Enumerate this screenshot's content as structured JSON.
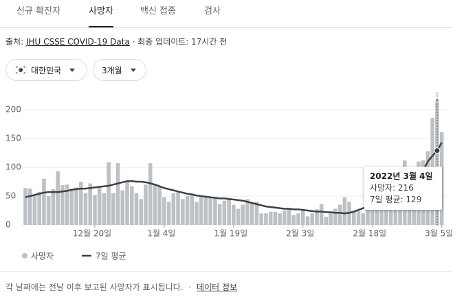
{
  "tabs": [
    "신규 확진자",
    "사망자",
    "백신 접종",
    "검사"
  ],
  "active_tab": 1,
  "source": {
    "label": "출처:",
    "link": "JHU CSSE COVID-19 Data",
    "updated": "· 최종 업데이트: 17시간 전"
  },
  "filters": [
    "대한민국",
    "3개월"
  ],
  "chart_data": {
    "type": "bar",
    "categories": [
      null,
      null,
      null,
      null,
      null,
      null,
      null,
      null,
      null,
      null,
      null,
      null,
      null,
      null,
      null,
      "12월 20일",
      null,
      null,
      null,
      null,
      null,
      null,
      null,
      null,
      null,
      null,
      null,
      null,
      null,
      null,
      "1월 4일",
      null,
      null,
      null,
      null,
      null,
      null,
      null,
      null,
      null,
      null,
      null,
      null,
      null,
      null,
      "1월 19일",
      null,
      null,
      null,
      null,
      null,
      null,
      null,
      null,
      null,
      null,
      null,
      null,
      null,
      null,
      "2월 3일",
      null,
      null,
      null,
      null,
      null,
      null,
      null,
      null,
      null,
      null,
      null,
      null,
      null,
      null,
      "2월 18일",
      null,
      null,
      null,
      null,
      null,
      null,
      null,
      null,
      null,
      null,
      null,
      null,
      null,
      null,
      "3월 5일"
    ],
    "series": [
      {
        "name": "사망자",
        "type": "bar",
        "color": "#bdc1c6",
        "values": [
          64,
          63,
          52,
          57,
          80,
          50,
          62,
          93,
          69,
          70,
          60,
          65,
          75,
          55,
          72,
          52,
          68,
          55,
          109,
          55,
          107,
          60,
          75,
          67,
          55,
          45,
          70,
          107,
          70,
          67,
          48,
          40,
          55,
          58,
          45,
          50,
          52,
          40,
          48,
          50,
          47,
          46,
          36,
          42,
          45,
          35,
          28,
          35,
          45,
          38,
          40,
          20,
          20,
          23,
          23,
          20,
          25,
          28,
          17,
          20,
          25,
          15,
          20,
          27,
          36,
          14,
          23,
          28,
          35,
          48,
          40,
          22,
          24,
          20,
          35,
          61,
          45,
          53,
          60,
          58,
          48,
          65,
          112,
          72,
          71,
          110,
          112,
          128,
          186,
          216,
          161
        ]
      },
      {
        "name": "7일 평균",
        "type": "line",
        "color": "#3c4043",
        "values": [
          48,
          50,
          52,
          54,
          56,
          57,
          57,
          57,
          58,
          59,
          61,
          62,
          63,
          63,
          64,
          65,
          66,
          67,
          68,
          70,
          72,
          74,
          76,
          76,
          75,
          75,
          74,
          72,
          70,
          67,
          64,
          62,
          60,
          58,
          56,
          54,
          53,
          51,
          50,
          49,
          48,
          47,
          46,
          46,
          45,
          44,
          43,
          42,
          40,
          38,
          36,
          34,
          32,
          31,
          30,
          29,
          28,
          28,
          27,
          27,
          26,
          25,
          24,
          23,
          23,
          22,
          22,
          21,
          21,
          20,
          21,
          23,
          26,
          29,
          32,
          35,
          38,
          40,
          42,
          44,
          46,
          50,
          55,
          62,
          70,
          80,
          95,
          110,
          120,
          129,
          143
        ]
      }
    ],
    "ylim": [
      0,
      200
    ],
    "yticks": [
      0,
      50,
      100,
      150,
      200
    ],
    "grid": true,
    "highlight_index": 89,
    "tooltip": {
      "title": "2022년 3월 4일",
      "lines": [
        "사망자: 216",
        "7일 평균: 129"
      ]
    }
  },
  "footer": {
    "note": "각 날짜에는 전날 이후 보고된 사망자가 표시됩니다.",
    "separator": "·",
    "link": "데이터 정보"
  }
}
